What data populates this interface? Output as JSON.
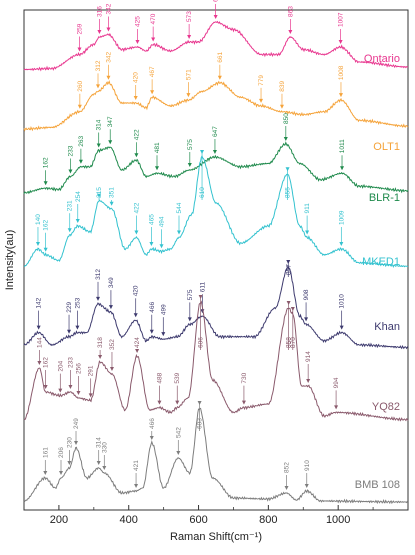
{
  "chart_data": {
    "type": "line",
    "title": "",
    "xlabel": "Raman Shift(cm⁻¹)",
    "ylabel": "Intensity(au)",
    "xlim": [
      100,
      1200
    ],
    "x_ticks": [
      "200",
      "400",
      "600",
      "800",
      "1000"
    ],
    "y_ticks": "none",
    "grid": false,
    "legend": "labels at right end of each trace",
    "series": [
      {
        "name": "Ontario",
        "color": "#e8378f",
        "peaks": [
          259,
          316,
          342,
          425,
          470,
          573,
          649,
          863,
          1007
        ],
        "peak_labels": [
          "259",
          "316",
          "342",
          "425",
          "470",
          "573",
          "649",
          "863",
          "1007"
        ],
        "profile": [
          [
            100,
            0.05
          ],
          [
            180,
            0.07
          ],
          [
            259,
            0.35
          ],
          [
            300,
            0.55
          ],
          [
            316,
            0.7
          ],
          [
            342,
            0.75
          ],
          [
            380,
            0.45
          ],
          [
            425,
            0.5
          ],
          [
            450,
            0.42
          ],
          [
            470,
            0.55
          ],
          [
            520,
            0.42
          ],
          [
            573,
            0.6
          ],
          [
            600,
            0.6
          ],
          [
            649,
            1.0
          ],
          [
            700,
            0.85
          ],
          [
            780,
            0.35
          ],
          [
            830,
            0.35
          ],
          [
            863,
            0.7
          ],
          [
            900,
            0.45
          ],
          [
            960,
            0.35
          ],
          [
            1007,
            0.5
          ],
          [
            1060,
            0.2
          ],
          [
            1200,
            0.1
          ]
        ]
      },
      {
        "name": "OLT1",
        "color": "#f5a33a",
        "peaks": [
          260,
          312,
          342,
          420,
          467,
          571,
          661,
          779,
          839,
          1008
        ],
        "peak_labels": [
          "260",
          "312",
          "342",
          "420",
          "467",
          "571",
          "661",
          "779",
          "839",
          "1008"
        ],
        "profile": [
          [
            100,
            0.05
          ],
          [
            180,
            0.08
          ],
          [
            260,
            0.35
          ],
          [
            300,
            0.65
          ],
          [
            312,
            0.7
          ],
          [
            342,
            0.85
          ],
          [
            380,
            0.5
          ],
          [
            420,
            0.5
          ],
          [
            450,
            0.42
          ],
          [
            467,
            0.6
          ],
          [
            520,
            0.45
          ],
          [
            571,
            0.55
          ],
          [
            610,
            0.7
          ],
          [
            661,
            0.85
          ],
          [
            720,
            0.6
          ],
          [
            779,
            0.45
          ],
          [
            839,
            0.35
          ],
          [
            900,
            0.3
          ],
          [
            960,
            0.35
          ],
          [
            1008,
            0.55
          ],
          [
            1060,
            0.2
          ],
          [
            1200,
            0.1
          ]
        ]
      },
      {
        "name": "BLR-1",
        "color": "#1f8a4c",
        "peaks": [
          162,
          233,
          263,
          314,
          347,
          422,
          481,
          575,
          647,
          850,
          1011
        ],
        "peak_labels": [
          "162",
          "233",
          "263",
          "314",
          "347",
          "422",
          "481",
          "575",
          "647",
          "850",
          "1011"
        ],
        "profile": [
          [
            100,
            0.05
          ],
          [
            162,
            0.12
          ],
          [
            200,
            0.1
          ],
          [
            233,
            0.3
          ],
          [
            263,
            0.45
          ],
          [
            290,
            0.45
          ],
          [
            314,
            0.7
          ],
          [
            347,
            0.75
          ],
          [
            380,
            0.4
          ],
          [
            422,
            0.55
          ],
          [
            450,
            0.3
          ],
          [
            481,
            0.35
          ],
          [
            530,
            0.3
          ],
          [
            575,
            0.4
          ],
          [
            647,
            0.6
          ],
          [
            720,
            0.45
          ],
          [
            800,
            0.5
          ],
          [
            850,
            0.8
          ],
          [
            890,
            0.5
          ],
          [
            950,
            0.25
          ],
          [
            1011,
            0.35
          ],
          [
            1060,
            0.15
          ],
          [
            1200,
            0.08
          ]
        ]
      },
      {
        "name": "MKED1",
        "color": "#33c2cf",
        "peaks": [
          140,
          162,
          231,
          254,
          315,
          351,
          422,
          465,
          494,
          544,
          610,
          855,
          911,
          1009
        ],
        "peak_labels": [
          "140",
          "162",
          "231",
          "254",
          "315",
          "351",
          "422",
          "465",
          "494",
          "544",
          "610",
          "855",
          "911",
          "1009"
        ],
        "profile": [
          [
            100,
            0.05
          ],
          [
            140,
            0.2
          ],
          [
            162,
            0.15
          ],
          [
            200,
            0.1
          ],
          [
            231,
            0.32
          ],
          [
            254,
            0.4
          ],
          [
            290,
            0.35
          ],
          [
            315,
            0.62
          ],
          [
            351,
            0.55
          ],
          [
            390,
            0.2
          ],
          [
            422,
            0.3
          ],
          [
            450,
            0.15
          ],
          [
            465,
            0.2
          ],
          [
            494,
            0.18
          ],
          [
            520,
            0.2
          ],
          [
            544,
            0.3
          ],
          [
            580,
            0.5
          ],
          [
            610,
            1.0
          ],
          [
            650,
            0.6
          ],
          [
            720,
            0.25
          ],
          [
            800,
            0.4
          ],
          [
            855,
            0.85
          ],
          [
            890,
            0.4
          ],
          [
            911,
            0.3
          ],
          [
            960,
            0.15
          ],
          [
            1009,
            0.2
          ],
          [
            1060,
            0.08
          ],
          [
            1200,
            0.05
          ]
        ]
      },
      {
        "name": "Khan",
        "color": "#3d3a6e",
        "peaks": [
          142,
          229,
          253,
          312,
          349,
          420,
          466,
          499,
          575,
          611,
          857,
          908,
          1010
        ],
        "peak_labels": [
          "142",
          "229",
          "253",
          "312",
          "349",
          "420",
          "466",
          "499",
          "575",
          "611",
          "857",
          "908",
          "1010"
        ],
        "profile": [
          [
            100,
            0.05
          ],
          [
            142,
            0.2
          ],
          [
            180,
            0.05
          ],
          [
            229,
            0.15
          ],
          [
            253,
            0.2
          ],
          [
            280,
            0.2
          ],
          [
            312,
            0.55
          ],
          [
            349,
            0.45
          ],
          [
            380,
            0.15
          ],
          [
            420,
            0.35
          ],
          [
            450,
            0.1
          ],
          [
            466,
            0.15
          ],
          [
            499,
            0.12
          ],
          [
            540,
            0.15
          ],
          [
            575,
            0.3
          ],
          [
            611,
            0.4
          ],
          [
            660,
            0.15
          ],
          [
            760,
            0.15
          ],
          [
            820,
            0.5
          ],
          [
            857,
            1.0
          ],
          [
            890,
            0.4
          ],
          [
            908,
            0.3
          ],
          [
            960,
            0.1
          ],
          [
            1010,
            0.2
          ],
          [
            1060,
            0.05
          ],
          [
            1200,
            0.02
          ]
        ]
      },
      {
        "name": "YQ82",
        "color": "#8a5a6c",
        "peaks": [
          144,
          162,
          204,
          233,
          256,
          291,
          318,
          352,
          424,
          488,
          539,
          606,
          730,
          858,
          870,
          914,
          994
        ],
        "peak_labels": [
          "144",
          "162",
          "204",
          "233",
          "256",
          "291",
          "318",
          "352",
          "424",
          "488",
          "539",
          "606",
          "730",
          "858",
          "870",
          "914",
          "994"
        ],
        "profile": [
          [
            100,
            0.02
          ],
          [
            144,
            0.45
          ],
          [
            162,
            0.25
          ],
          [
            204,
            0.22
          ],
          [
            233,
            0.25
          ],
          [
            256,
            0.2
          ],
          [
            291,
            0.18
          ],
          [
            318,
            0.5
          ],
          [
            352,
            0.4
          ],
          [
            390,
            0.1
          ],
          [
            424,
            0.55
          ],
          [
            460,
            0.1
          ],
          [
            488,
            0.12
          ],
          [
            520,
            0.08
          ],
          [
            539,
            0.12
          ],
          [
            570,
            0.2
          ],
          [
            606,
            1.0
          ],
          [
            640,
            0.35
          ],
          [
            700,
            0.08
          ],
          [
            730,
            0.12
          ],
          [
            800,
            0.15
          ],
          [
            858,
            0.95
          ],
          [
            870,
            0.9
          ],
          [
            895,
            0.3
          ],
          [
            914,
            0.3
          ],
          [
            960,
            0.05
          ],
          [
            994,
            0.08
          ],
          [
            1200,
            0.02
          ]
        ]
      },
      {
        "name": "BMB 108",
        "color": "#7d7d7d",
        "peaks": [
          161,
          206,
          230,
          249,
          314,
          330,
          421,
          466,
          542,
          603,
          852,
          910
        ],
        "peak_labels": [
          "161",
          "206",
          "230",
          "249",
          "314",
          "330",
          "421",
          "466",
          "542",
          "603",
          "852",
          "910"
        ],
        "profile": [
          [
            100,
            0.02
          ],
          [
            161,
            0.25
          ],
          [
            190,
            0.15
          ],
          [
            206,
            0.25
          ],
          [
            230,
            0.35
          ],
          [
            249,
            0.55
          ],
          [
            280,
            0.25
          ],
          [
            314,
            0.35
          ],
          [
            330,
            0.3
          ],
          [
            380,
            0.1
          ],
          [
            421,
            0.12
          ],
          [
            440,
            0.15
          ],
          [
            466,
            0.6
          ],
          [
            500,
            0.15
          ],
          [
            542,
            0.45
          ],
          [
            575,
            0.3
          ],
          [
            603,
            0.95
          ],
          [
            640,
            0.25
          ],
          [
            700,
            0.05
          ],
          [
            800,
            0.04
          ],
          [
            852,
            0.1
          ],
          [
            880,
            0.03
          ],
          [
            910,
            0.12
          ],
          [
            950,
            0.02
          ],
          [
            1200,
            0.01
          ]
        ]
      }
    ]
  }
}
